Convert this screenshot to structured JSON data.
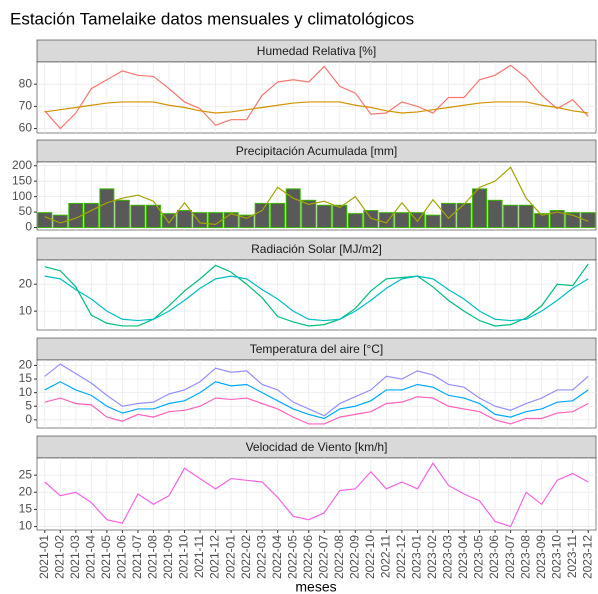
{
  "title": "Estación Tamelaike datos mensuales y climatológicos",
  "x_label": "meses",
  "categories": [
    "2021-01",
    "2021-02",
    "2021-03",
    "2021-04",
    "2021-05",
    "2021-06",
    "2021-07",
    "2021-08",
    "2021-09",
    "2021-10",
    "2021-11",
    "2021-12",
    "2022-01",
    "2022-02",
    "2022-03",
    "2022-04",
    "2022-05",
    "2022-06",
    "2022-07",
    "2022-08",
    "2022-09",
    "2022-10",
    "2022-11",
    "2022-12",
    "2023-01",
    "2023-02",
    "2023-03",
    "2023-04",
    "2023-05",
    "2023-06",
    "2023-07",
    "2023-08",
    "2023-09",
    "2023-10",
    "2023-11",
    "2023-12"
  ],
  "chart_data": [
    {
      "type": "line",
      "title": "Humedad Relativa [%]",
      "ylim": [
        58,
        90
      ],
      "yticks": [
        60,
        70,
        80
      ],
      "grid": true,
      "series": [
        {
          "color": "#f8766d",
          "values": [
            68,
            60,
            67,
            78,
            82,
            86,
            84,
            83.5,
            78,
            72,
            69,
            61.5,
            64,
            64,
            75,
            81,
            82,
            81,
            88,
            79,
            76,
            66.5,
            67,
            72,
            70,
            67,
            74,
            74,
            82,
            84,
            88.5,
            83,
            75,
            69,
            73,
            65.5
          ]
        },
        {
          "color": "#d39200",
          "values": [
            67.5,
            68.5,
            69.5,
            70.5,
            71.5,
            72,
            72,
            72,
            70.5,
            69.5,
            68,
            67,
            67.5,
            68.5,
            69.5,
            70.5,
            71.5,
            72,
            72,
            72,
            70.5,
            69.5,
            68,
            67,
            67.5,
            68.5,
            69.5,
            70.5,
            71.5,
            72,
            72,
            72,
            70.5,
            69.5,
            68,
            67
          ]
        }
      ]
    },
    {
      "type": "bar",
      "title": "Precipitación Acumulada [mm]",
      "ylim": [
        -8,
        212
      ],
      "yticks": [
        0,
        50,
        100,
        150,
        200
      ],
      "grid": true,
      "series": [
        {
          "type": "bar",
          "color": "#595959",
          "stroke": "#39b600",
          "values": [
            48,
            40,
            78,
            78,
            125,
            88,
            72,
            72,
            45,
            55,
            48,
            48,
            48,
            40,
            78,
            78,
            125,
            88,
            72,
            72,
            45,
            55,
            48,
            48,
            48,
            40,
            78,
            78,
            125,
            88,
            72,
            72,
            45,
            55,
            48,
            48
          ]
        },
        {
          "type": "line",
          "color": "#a3a500",
          "values": [
            35,
            15,
            30,
            55,
            80,
            95,
            105,
            85,
            15,
            80,
            15,
            10,
            45,
            30,
            55,
            130,
            95,
            75,
            85,
            65,
            100,
            30,
            15,
            80,
            20,
            90,
            30,
            75,
            130,
            150,
            195,
            95,
            40,
            50,
            40,
            20
          ]
        }
      ]
    },
    {
      "type": "line",
      "title": "Radiación Solar [MJ/m2]",
      "ylim": [
        3,
        29
      ],
      "yticks": [
        10,
        20
      ],
      "grid": true,
      "series": [
        {
          "color": "#00bf7d",
          "values": [
            26.5,
            25,
            19,
            8.5,
            5.5,
            4.5,
            4.5,
            7,
            12,
            17.5,
            22,
            27,
            24.5,
            20,
            15,
            8,
            6,
            4.5,
            5,
            7,
            11,
            17.5,
            22,
            22.5,
            23,
            19,
            14,
            10,
            6.5,
            4.5,
            5,
            7.5,
            12,
            20,
            19.5,
            27.5
          ]
        },
        {
          "color": "#00bfc4",
          "values": [
            23,
            22,
            18,
            14.5,
            10,
            7,
            6.5,
            7,
            10,
            14,
            18.5,
            22,
            23,
            22,
            18,
            14.5,
            10,
            7,
            6.5,
            7,
            10,
            14,
            18.5,
            22,
            23,
            22,
            18,
            14.5,
            10,
            7,
            6.5,
            7,
            10,
            14,
            18.5,
            22
          ]
        }
      ]
    },
    {
      "type": "line",
      "title": "Temperatura del aire [°C]",
      "ylim": [
        -3,
        22
      ],
      "yticks": [
        0,
        5,
        10,
        15,
        20
      ],
      "grid": true,
      "series": [
        {
          "color": "#9590ff",
          "values": [
            16,
            20.5,
            17,
            13.5,
            9,
            5,
            6,
            6.5,
            9.5,
            11,
            14,
            19,
            17.5,
            18,
            13,
            11,
            6.5,
            4,
            1.5,
            6,
            8.5,
            11,
            16,
            15,
            18,
            16.5,
            13,
            12,
            8,
            5,
            3.5,
            6,
            8,
            11,
            11,
            16
          ]
        },
        {
          "color": "#00a9ff",
          "values": [
            11,
            14,
            11,
            9,
            5,
            2.5,
            4,
            4,
            6,
            7,
            10,
            14,
            12.5,
            13,
            10,
            7,
            4,
            2,
            0.5,
            4,
            5,
            7,
            11,
            11,
            13,
            12,
            9,
            8,
            6,
            2,
            1,
            3,
            4,
            6.5,
            7,
            11
          ]
        },
        {
          "color": "#ff62bc",
          "values": [
            6.5,
            8,
            6,
            5.5,
            1,
            -0.5,
            2,
            1,
            3,
            3.5,
            5,
            8,
            7.5,
            8,
            6,
            4,
            1,
            -1.5,
            -1.5,
            1,
            2,
            3,
            6,
            6.5,
            8.5,
            8,
            5,
            4,
            3,
            0,
            -1.5,
            0.5,
            0.5,
            2.5,
            3,
            6
          ]
        }
      ]
    },
    {
      "type": "line",
      "title": "Velocidad de Viento [km/h]",
      "ylim": [
        9,
        30
      ],
      "yticks": [
        10,
        15,
        20,
        25
      ],
      "grid": true,
      "series": [
        {
          "color": "#f564e3",
          "values": [
            23,
            19,
            20,
            17,
            12,
            11,
            19.5,
            16.5,
            19,
            27,
            24,
            21,
            24,
            23.5,
            23,
            18.5,
            13,
            12,
            14,
            20.5,
            21,
            26,
            21,
            23,
            21,
            28.5,
            22,
            19.5,
            17.5,
            11.5,
            10,
            20,
            16.5,
            23.5,
            25.5,
            23
          ]
        }
      ]
    }
  ]
}
